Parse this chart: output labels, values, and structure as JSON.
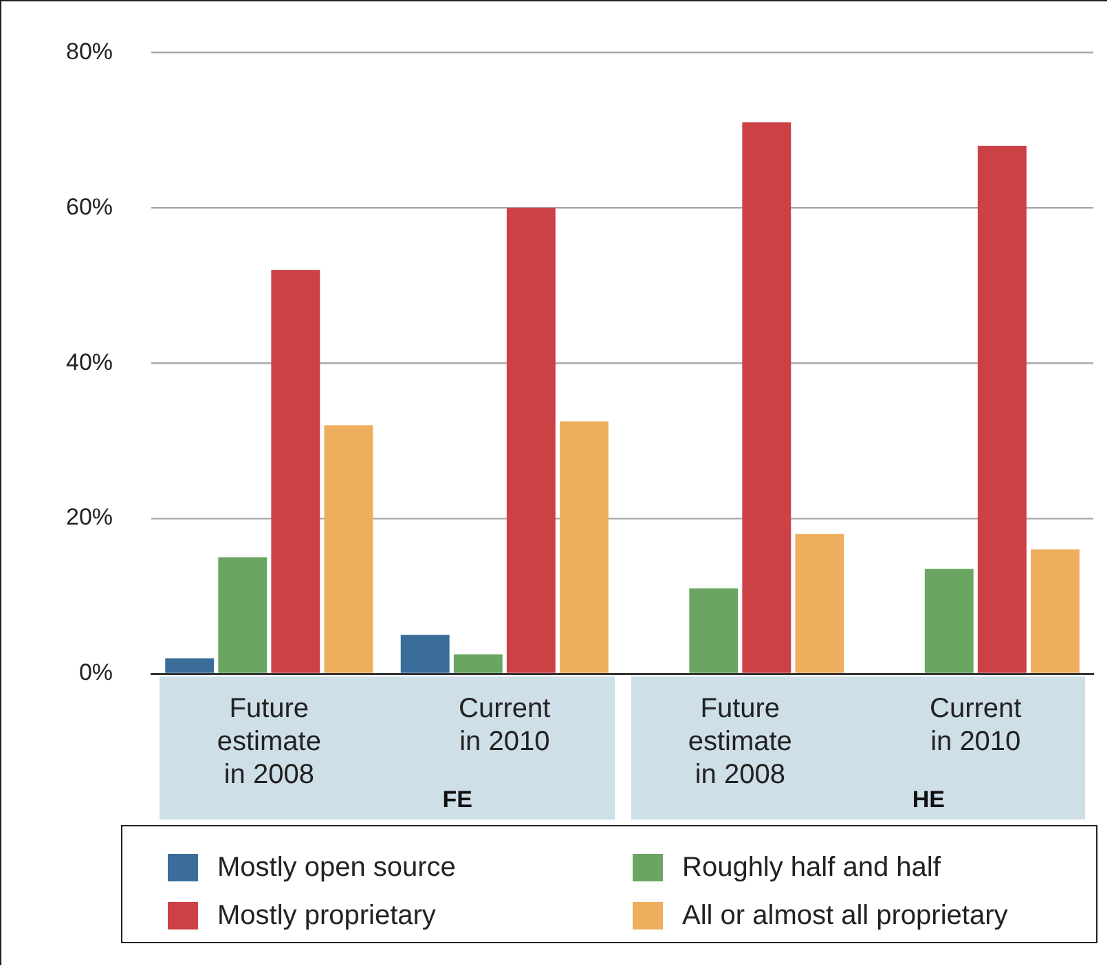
{
  "chart_data": {
    "type": "bar",
    "categories": [
      "Future estimate in 2008",
      "Current in 2010",
      "Future estimate in 2008",
      "Current in 2010"
    ],
    "series": [
      {
        "name": "Mostly open source",
        "color": "#3a6d9a",
        "values": [
          2,
          5,
          null,
          null
        ]
      },
      {
        "name": "Roughly half and half",
        "color": "#6aa561",
        "values": [
          15,
          2.5,
          11,
          13.5
        ]
      },
      {
        "name": "Mostly proprietary",
        "color": "#cc4146",
        "values": [
          52,
          60,
          71,
          68
        ]
      },
      {
        "name": "All or almost all proprietary",
        "color": "#eeae5e",
        "values": [
          32,
          32.5,
          18,
          16
        ]
      }
    ],
    "ylim": [
      0,
      80
    ],
    "yticks": [
      {
        "value": 0,
        "label": "0%"
      },
      {
        "value": 20,
        "label": "20%"
      },
      {
        "value": 40,
        "label": "40%"
      },
      {
        "value": 60,
        "label": "60%"
      },
      {
        "value": 80,
        "label": "80%"
      }
    ],
    "grid": "y",
    "legend": "bottom",
    "annotations": [
      "FE",
      "HE"
    ]
  }
}
